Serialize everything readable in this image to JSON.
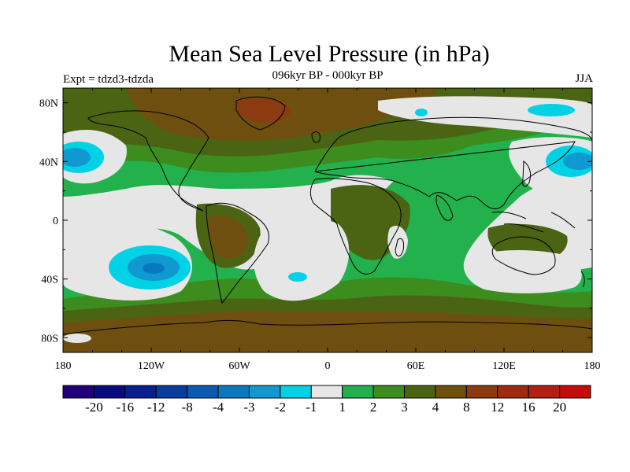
{
  "title": "Mean Sea Level Pressure (in hPa)",
  "subtitle": "096kyr BP - 000kyr BP",
  "left_label": "Expt = tdzd3-tdzda",
  "right_label": "JJA",
  "map": {
    "projection": "cylindrical equidistant",
    "lat_ticks": [
      "80N",
      "40N",
      "0",
      "40S",
      "80S"
    ],
    "lon_ticks": [
      "180",
      "120W",
      "60W",
      "0",
      "60E",
      "120E",
      "180"
    ],
    "lat_values": [
      80,
      40,
      0,
      -40,
      -80
    ],
    "lon_values": [
      -180,
      -120,
      -60,
      0,
      60,
      120,
      180
    ],
    "lat_range": [
      -90,
      90
    ],
    "lon_range": [
      -180,
      180
    ]
  },
  "colorbar": {
    "colors": [
      "#20007a",
      "#0a0a80",
      "#0a1e90",
      "#0a3ca0",
      "#0a5ab4",
      "#0a78c0",
      "#1098d0",
      "#00d2e6",
      "#e6e6e6",
      "#22b14c",
      "#3c8c1e",
      "#4b6414",
      "#6e4f0f",
      "#8c3a10",
      "#a02a10",
      "#b41e14",
      "#c80a0a"
    ],
    "labels": [
      "-20",
      "-16",
      "-12",
      "-8",
      "-4",
      "-3",
      "-2",
      "-1",
      "1",
      "2",
      "3",
      "4",
      "8",
      "12",
      "16",
      "20"
    ]
  },
  "colors": {
    "white_near_zero": "#e6e6e6",
    "cyan_neg": "#00d2e6",
    "blue_neg": "#1098d0",
    "green1": "#22b14c",
    "green2": "#3c8c1e",
    "olive": "#4b6414",
    "brown": "#6e4f0f",
    "rust": "#8c3a10"
  }
}
